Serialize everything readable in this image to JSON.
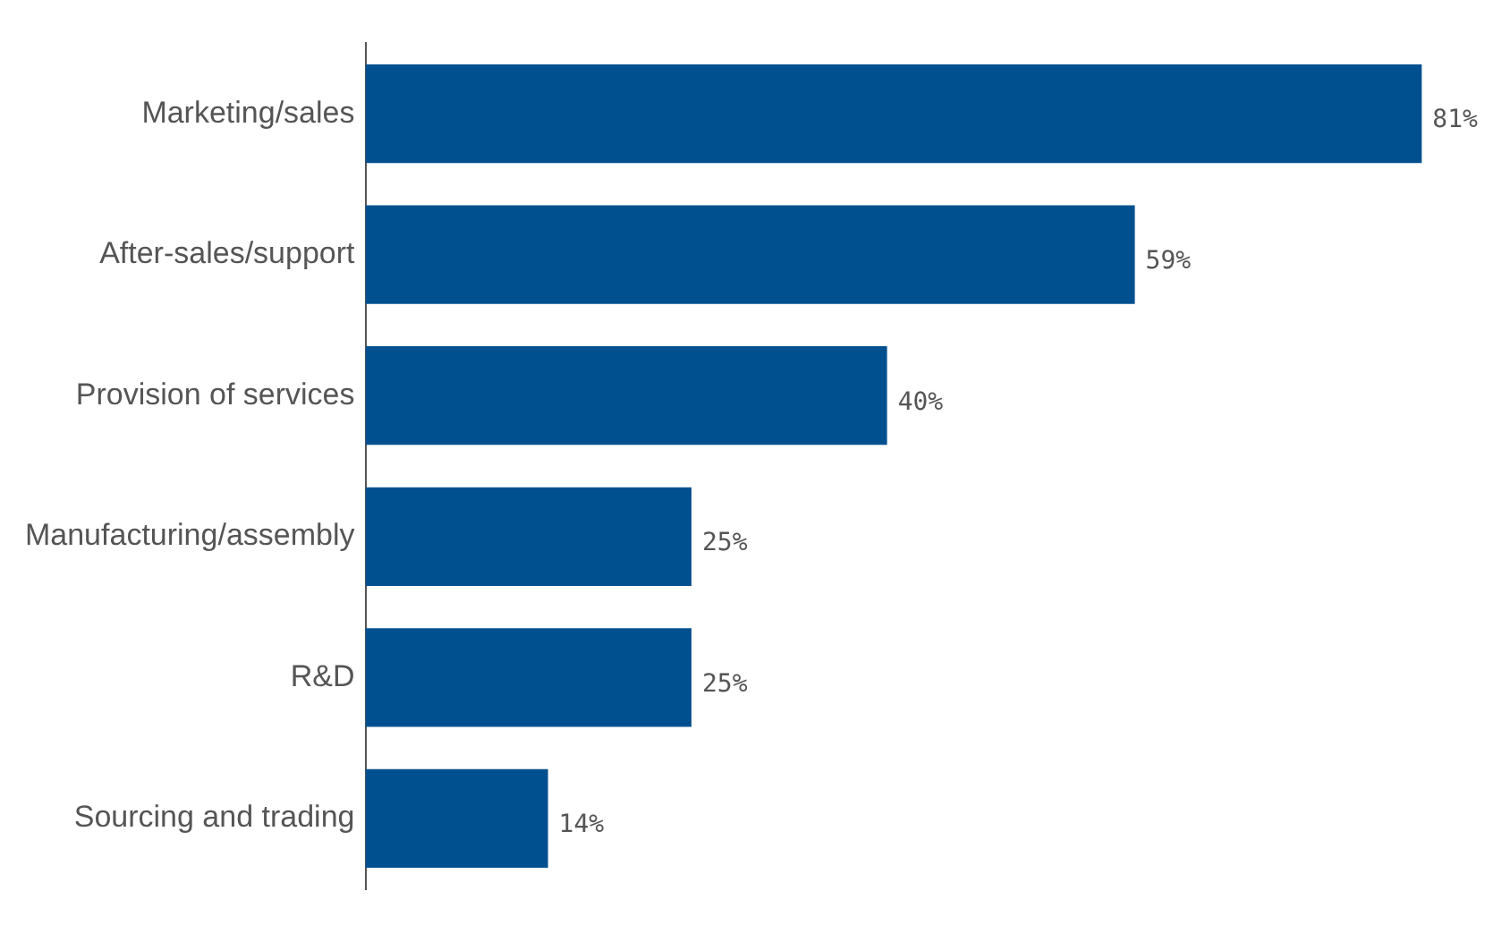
{
  "chart_data": {
    "type": "bar",
    "orientation": "horizontal",
    "categories": [
      "Marketing/sales",
      "After-sales/support",
      "Provision of services",
      "Manufacturing/assembly",
      "R&D",
      "Sourcing and trading"
    ],
    "values": [
      81,
      59,
      40,
      25,
      25,
      14
    ],
    "value_labels": [
      "81%",
      "59%",
      "40%",
      "25%",
      "25%",
      "14%"
    ],
    "color": "#00508f",
    "legend": false
  }
}
